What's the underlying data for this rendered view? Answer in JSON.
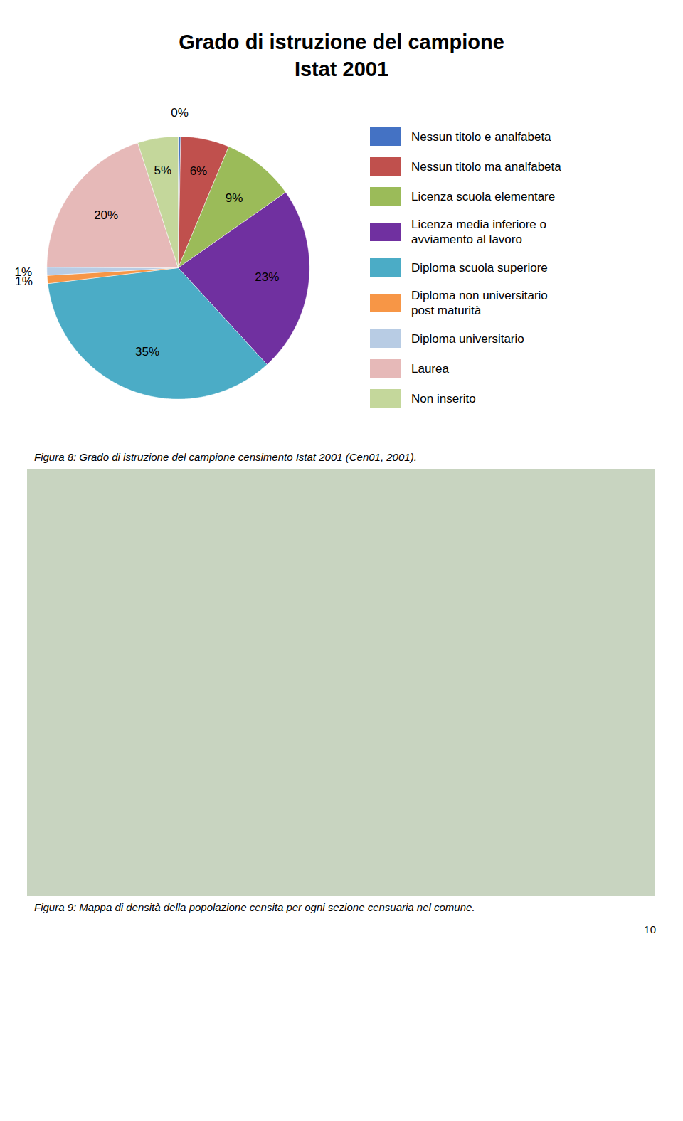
{
  "chart_data": {
    "type": "pie",
    "title": "Grado di istruzione del campione",
    "subtitle": "Istat 2001",
    "categories": [
      "Nessun titolo e analfabeta",
      "Nessun titolo ma analfabeta",
      "Licenza scuola elementare",
      "Licenza media inferiore o\navviamento al lavoro",
      "Diploma scuola superiore",
      "Diploma non universitario\npost maturità",
      "Diploma universitario",
      "Laurea",
      "Non inserito"
    ],
    "values": [
      0.3,
      6,
      9,
      23,
      35,
      1,
      1,
      20,
      5
    ],
    "value_labels": [
      "0%",
      "6%",
      "9%",
      "23%",
      "35%",
      "1%",
      "1%",
      "20%",
      "5%"
    ],
    "colors": [
      "#4472C4",
      "#C0504D",
      "#9BBB59",
      "#7030A0",
      "#4BACC6",
      "#F79646",
      "#B8CCE4",
      "#E6B9B8",
      "#C4D79B"
    ],
    "data_labels": true,
    "legend": "right",
    "caption": "Figura 8: Grado di istruzione del campione censimento Istat 2001 (Cen01, 2001).",
    "annotations": [
      "Figura 9: Mappa di densità della popolazione censita per ogni sezione censuaria nel comune.",
      "10"
    ]
  }
}
